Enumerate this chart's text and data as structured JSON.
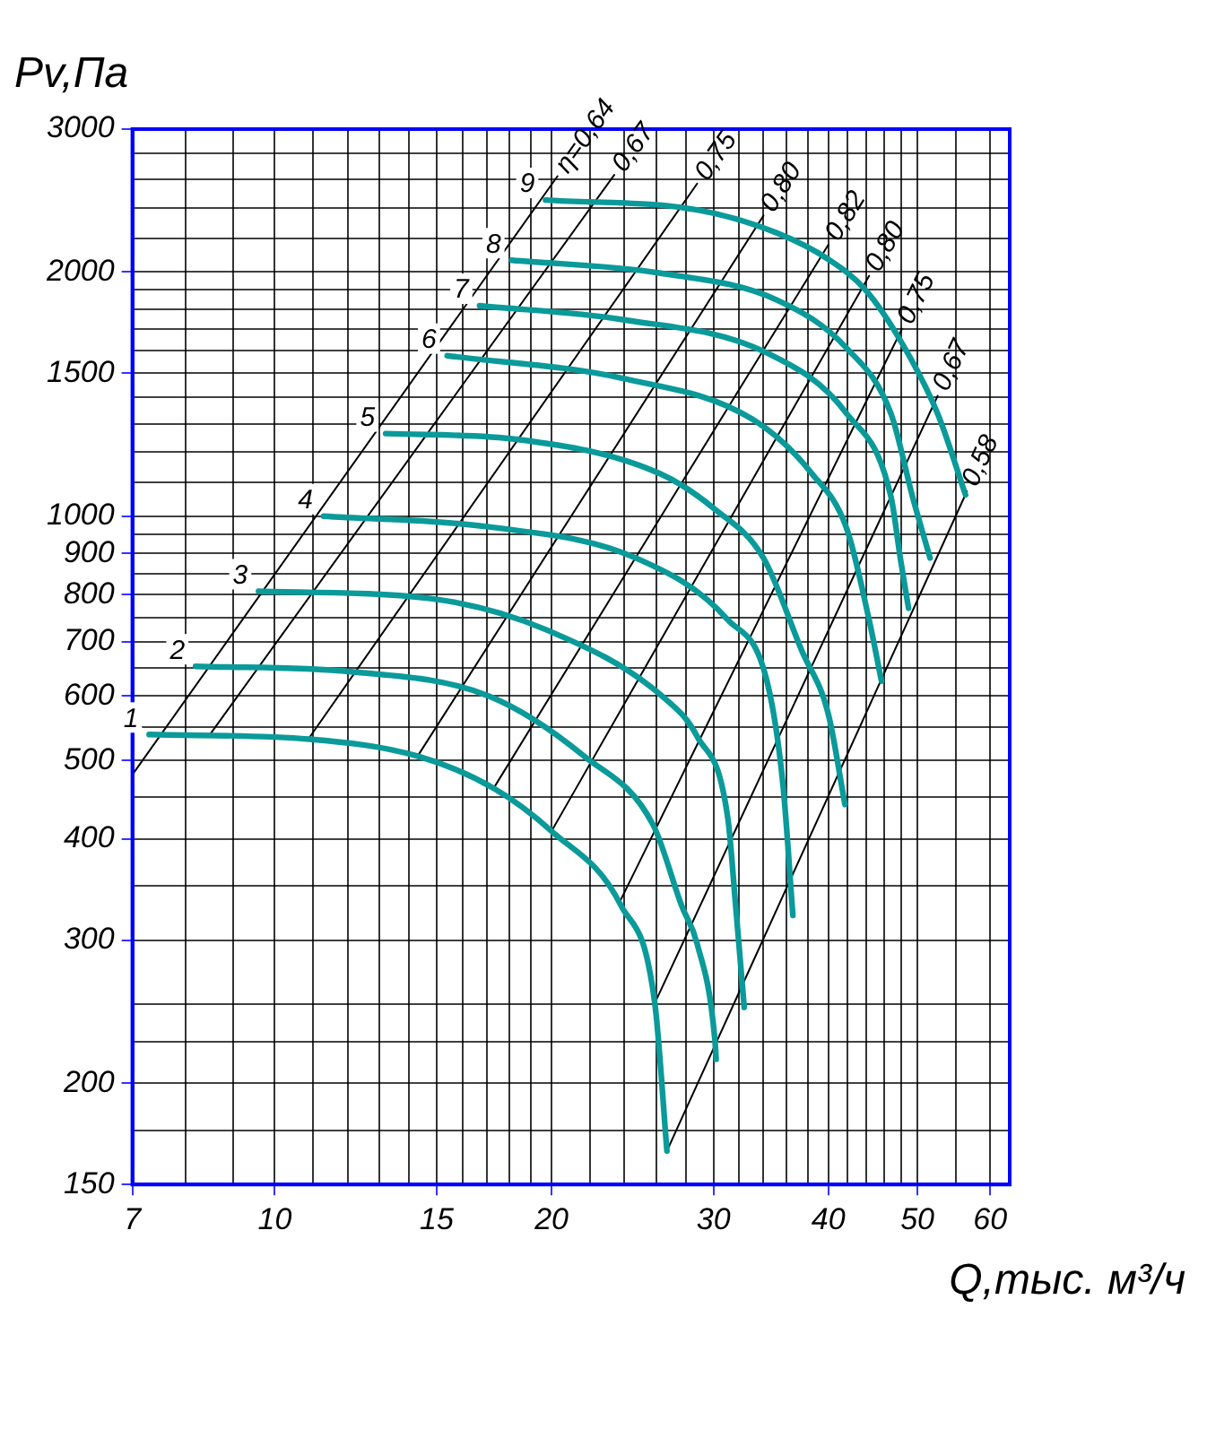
{
  "chart_data": {
    "type": "line",
    "xlabel": "Q,тыс. м³/ч",
    "ylabel": "Pv,Па",
    "log": "xy",
    "grid": true,
    "legend": false,
    "marker": "none",
    "line_style": "solid",
    "xlim": [
      7,
      63
    ],
    "ylim": [
      150,
      3000
    ],
    "xticks": [
      7,
      {
        "value": 8,
        "label": null
      },
      {
        "value": 9,
        "label": null
      },
      10,
      {
        "value": 11,
        "label": null
      },
      {
        "value": 12,
        "label": null
      },
      {
        "value": 13,
        "label": null
      },
      {
        "value": 14,
        "label": null
      },
      15,
      {
        "value": 16,
        "label": null
      },
      {
        "value": 17,
        "label": null
      },
      {
        "value": 18,
        "label": null
      },
      {
        "value": 19,
        "label": null
      },
      20,
      {
        "value": 22,
        "label": null
      },
      {
        "value": 24,
        "label": null
      },
      {
        "value": 26,
        "label": null
      },
      {
        "value": 28,
        "label": null
      },
      30,
      {
        "value": 32,
        "label": null
      },
      {
        "value": 34,
        "label": null
      },
      {
        "value": 36,
        "label": null
      },
      {
        "value": 38,
        "label": null
      },
      40,
      {
        "value": 42,
        "label": null
      },
      {
        "value": 44,
        "label": null
      },
      {
        "value": 46,
        "label": null
      },
      {
        "value": 48,
        "label": null
      },
      50,
      {
        "value": 55,
        "label": null
      },
      60
    ],
    "yticks": [
      150,
      {
        "value": 175,
        "label": null
      },
      200,
      {
        "value": 225,
        "label": null
      },
      {
        "value": 250,
        "label": null
      },
      300,
      {
        "value": 350,
        "label": null
      },
      400,
      {
        "value": 450,
        "label": null
      },
      500,
      {
        "value": 550,
        "label": null
      },
      600,
      {
        "value": 650,
        "label": null
      },
      700,
      {
        "value": 750,
        "label": null
      },
      800,
      {
        "value": 850,
        "label": null
      },
      900,
      {
        "value": 950,
        "label": null
      },
      1000,
      {
        "value": 1100,
        "label": null
      },
      {
        "value": 1200,
        "label": null
      },
      {
        "value": 1300,
        "label": null
      },
      {
        "value": 1400,
        "label": null
      },
      1500,
      {
        "value": 1600,
        "label": null
      },
      {
        "value": 1700,
        "label": null
      },
      {
        "value": 1800,
        "label": null
      },
      {
        "value": 1900,
        "label": null
      },
      2000,
      {
        "value": 2200,
        "label": null
      },
      {
        "value": 2400,
        "label": null
      },
      {
        "value": 2600,
        "label": null
      },
      {
        "value": 2800,
        "label": null
      },
      3000
    ],
    "series": [
      {
        "name": "1",
        "color": "#0b9a9a",
        "x": [
          7.3,
          10.9,
          14.3,
          17.3,
          20,
          23.8,
          25.9,
          26.7
        ],
        "values": [
          538,
          531,
          506,
          462,
          409,
          331,
          251,
          165
        ]
      },
      {
        "name": "2",
        "color": "#0b9a9a",
        "x": [
          8.2,
          12.1,
          17.1,
          21.7,
          25.8,
          27.7,
          28.8,
          30.1,
          30.2
        ],
        "values": [
          653,
          643,
          600,
          506,
          416,
          331,
          297,
          227,
          214
        ]
      },
      {
        "name": "3",
        "color": "#0b9a9a",
        "x": [
          9.6,
          14.7,
          19.7,
          26.7,
          28.8,
          31.1,
          31.7,
          32.4
        ],
        "values": [
          808,
          792,
          725,
          593,
          535,
          424,
          333,
          248
        ]
      },
      {
        "name": "4",
        "color": "#0b9a9a",
        "x": [
          11.3,
          17.1,
          24.7,
          31.1,
          34.3,
          35.7,
          36.6
        ],
        "values": [
          1000,
          970,
          888,
          745,
          626,
          467,
          322
        ]
      },
      {
        "name": "5",
        "color": "#0b9a9a",
        "x": [
          13.2,
          18.4,
          26.2,
          30.1,
          34,
          37.4,
          40,
          41.7
        ],
        "values": [
          1264,
          1243,
          1129,
          1020,
          888,
          684,
          570,
          441
        ]
      },
      {
        "name": "6",
        "color": "#0b9a9a",
        "x": [
          15.4,
          23.8,
          33.1,
          38.4,
          41.9,
          44.3,
          45.7
        ],
        "values": [
          1577,
          1480,
          1316,
          1128,
          964,
          745,
          626
        ]
      },
      {
        "name": "7",
        "color": "#0b9a9a",
        "x": [
          16.7,
          23.8,
          34.3,
          41.9,
          46.8,
          47.9,
          48.9
        ],
        "values": [
          1817,
          1748,
          1589,
          1337,
          1056,
          888,
          770
        ]
      },
      {
        "name": "8",
        "color": "#0b9a9a",
        "x": [
          18.1,
          26.2,
          35.2,
          41.9,
          46.8,
          49.4,
          51.6
        ],
        "values": [
          2068,
          1994,
          1846,
          1610,
          1337,
          1056,
          888
        ]
      },
      {
        "name": "9",
        "color": "#0b9a9a",
        "x": [
          19.7,
          28.8,
          35.2,
          40,
          43.9,
          48.1,
          52.6,
          56.4
        ],
        "values": [
          2453,
          2385,
          2233,
          2073,
          1901,
          1634,
          1337,
          1062
        ]
      },
      {
        "name": "η=0,64",
        "color": "#000000",
        "x": [
          7,
          20.3
        ],
        "values": [
          480,
          2625
        ]
      },
      {
        "name": "0,67",
        "color": "#000000",
        "x": [
          8.5,
          23.4
        ],
        "values": [
          538,
          2634
        ]
      },
      {
        "name": "0,75",
        "color": "#000000",
        "x": [
          10.9,
          28.8
        ],
        "values": [
          533,
          2570
        ]
      },
      {
        "name": "0,80",
        "color": "#000000",
        "x": [
          14.3,
          34
        ],
        "values": [
          506,
          2346
        ]
      },
      {
        "name": "0,82",
        "color": "#000000",
        "x": [
          17.3,
          40
        ],
        "values": [
          462,
          2161
        ]
      },
      {
        "name": "0,80",
        "color": "#000000",
        "x": [
          20,
          44.3
        ],
        "values": [
          409,
          1978
        ]
      },
      {
        "name": "0,75",
        "color": "#000000",
        "x": [
          23.8,
          48.1
        ],
        "values": [
          337,
          1702
        ]
      },
      {
        "name": "0,67",
        "color": "#000000",
        "x": [
          25.9,
          52.6
        ],
        "values": [
          251,
          1407
        ]
      },
      {
        "name": "0,58",
        "color": "#000000",
        "x": [
          26.7,
          56.6
        ],
        "values": [
          165,
          1073
        ]
      }
    ]
  }
}
